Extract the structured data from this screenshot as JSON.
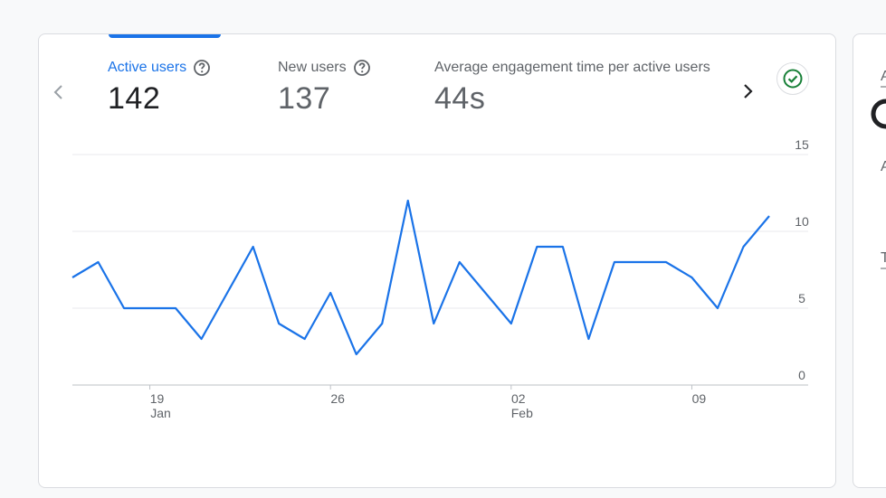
{
  "metrics": [
    {
      "label": "Active users",
      "value": "142",
      "active": true,
      "icon": "help-icon"
    },
    {
      "label": "New users",
      "value": "137",
      "active": false,
      "icon": "help-icon"
    },
    {
      "label": "Average engagement time per active users",
      "value": "44s",
      "active": false
    }
  ],
  "nav": {
    "prev_icon": "chevron-left-icon",
    "next_icon": "chevron-right-icon"
  },
  "status_icon": "check-circle-icon",
  "colors": {
    "accent": "#1a73e8",
    "line": "#1a73e8",
    "status_green": "#188038",
    "grid": "#e8eaed",
    "axis_text": "#5f6368"
  },
  "chart_data": {
    "type": "line",
    "x": [
      "2023-01-16",
      "2023-01-17",
      "2023-01-18",
      "2023-01-19",
      "2023-01-20",
      "2023-01-21",
      "2023-01-22",
      "2023-01-23",
      "2023-01-24",
      "2023-01-25",
      "2023-01-26",
      "2023-01-27",
      "2023-01-28",
      "2023-01-29",
      "2023-01-30",
      "2023-01-31",
      "2023-02-01",
      "2023-02-02",
      "2023-02-03",
      "2023-02-04",
      "2023-02-05",
      "2023-02-06",
      "2023-02-07",
      "2023-02-08",
      "2023-02-09",
      "2023-02-10",
      "2023-02-11",
      "2023-02-12"
    ],
    "series": [
      {
        "values": [
          7,
          8,
          5,
          5,
          5,
          3,
          6,
          9,
          4,
          3,
          6,
          2,
          4,
          12,
          4,
          8,
          6,
          4,
          9,
          9,
          3,
          8,
          8,
          8,
          7,
          5,
          9,
          11
        ]
      }
    ],
    "ylim": [
      0,
      15
    ],
    "y_ticks": [
      "0",
      "5",
      "10",
      "15"
    ],
    "x_ticks": [
      {
        "date": "2023-01-19",
        "label": "19",
        "sublabel": "Jan"
      },
      {
        "date": "2023-01-26",
        "label": "26",
        "sublabel": ""
      },
      {
        "date": "2023-02-02",
        "label": "02",
        "sublabel": "Feb"
      },
      {
        "date": "2023-02-09",
        "label": "09",
        "sublabel": ""
      }
    ],
    "grid": true,
    "y_axis_position": "right"
  },
  "side_card": {
    "fragments": [
      "A",
      "A",
      "T"
    ]
  }
}
